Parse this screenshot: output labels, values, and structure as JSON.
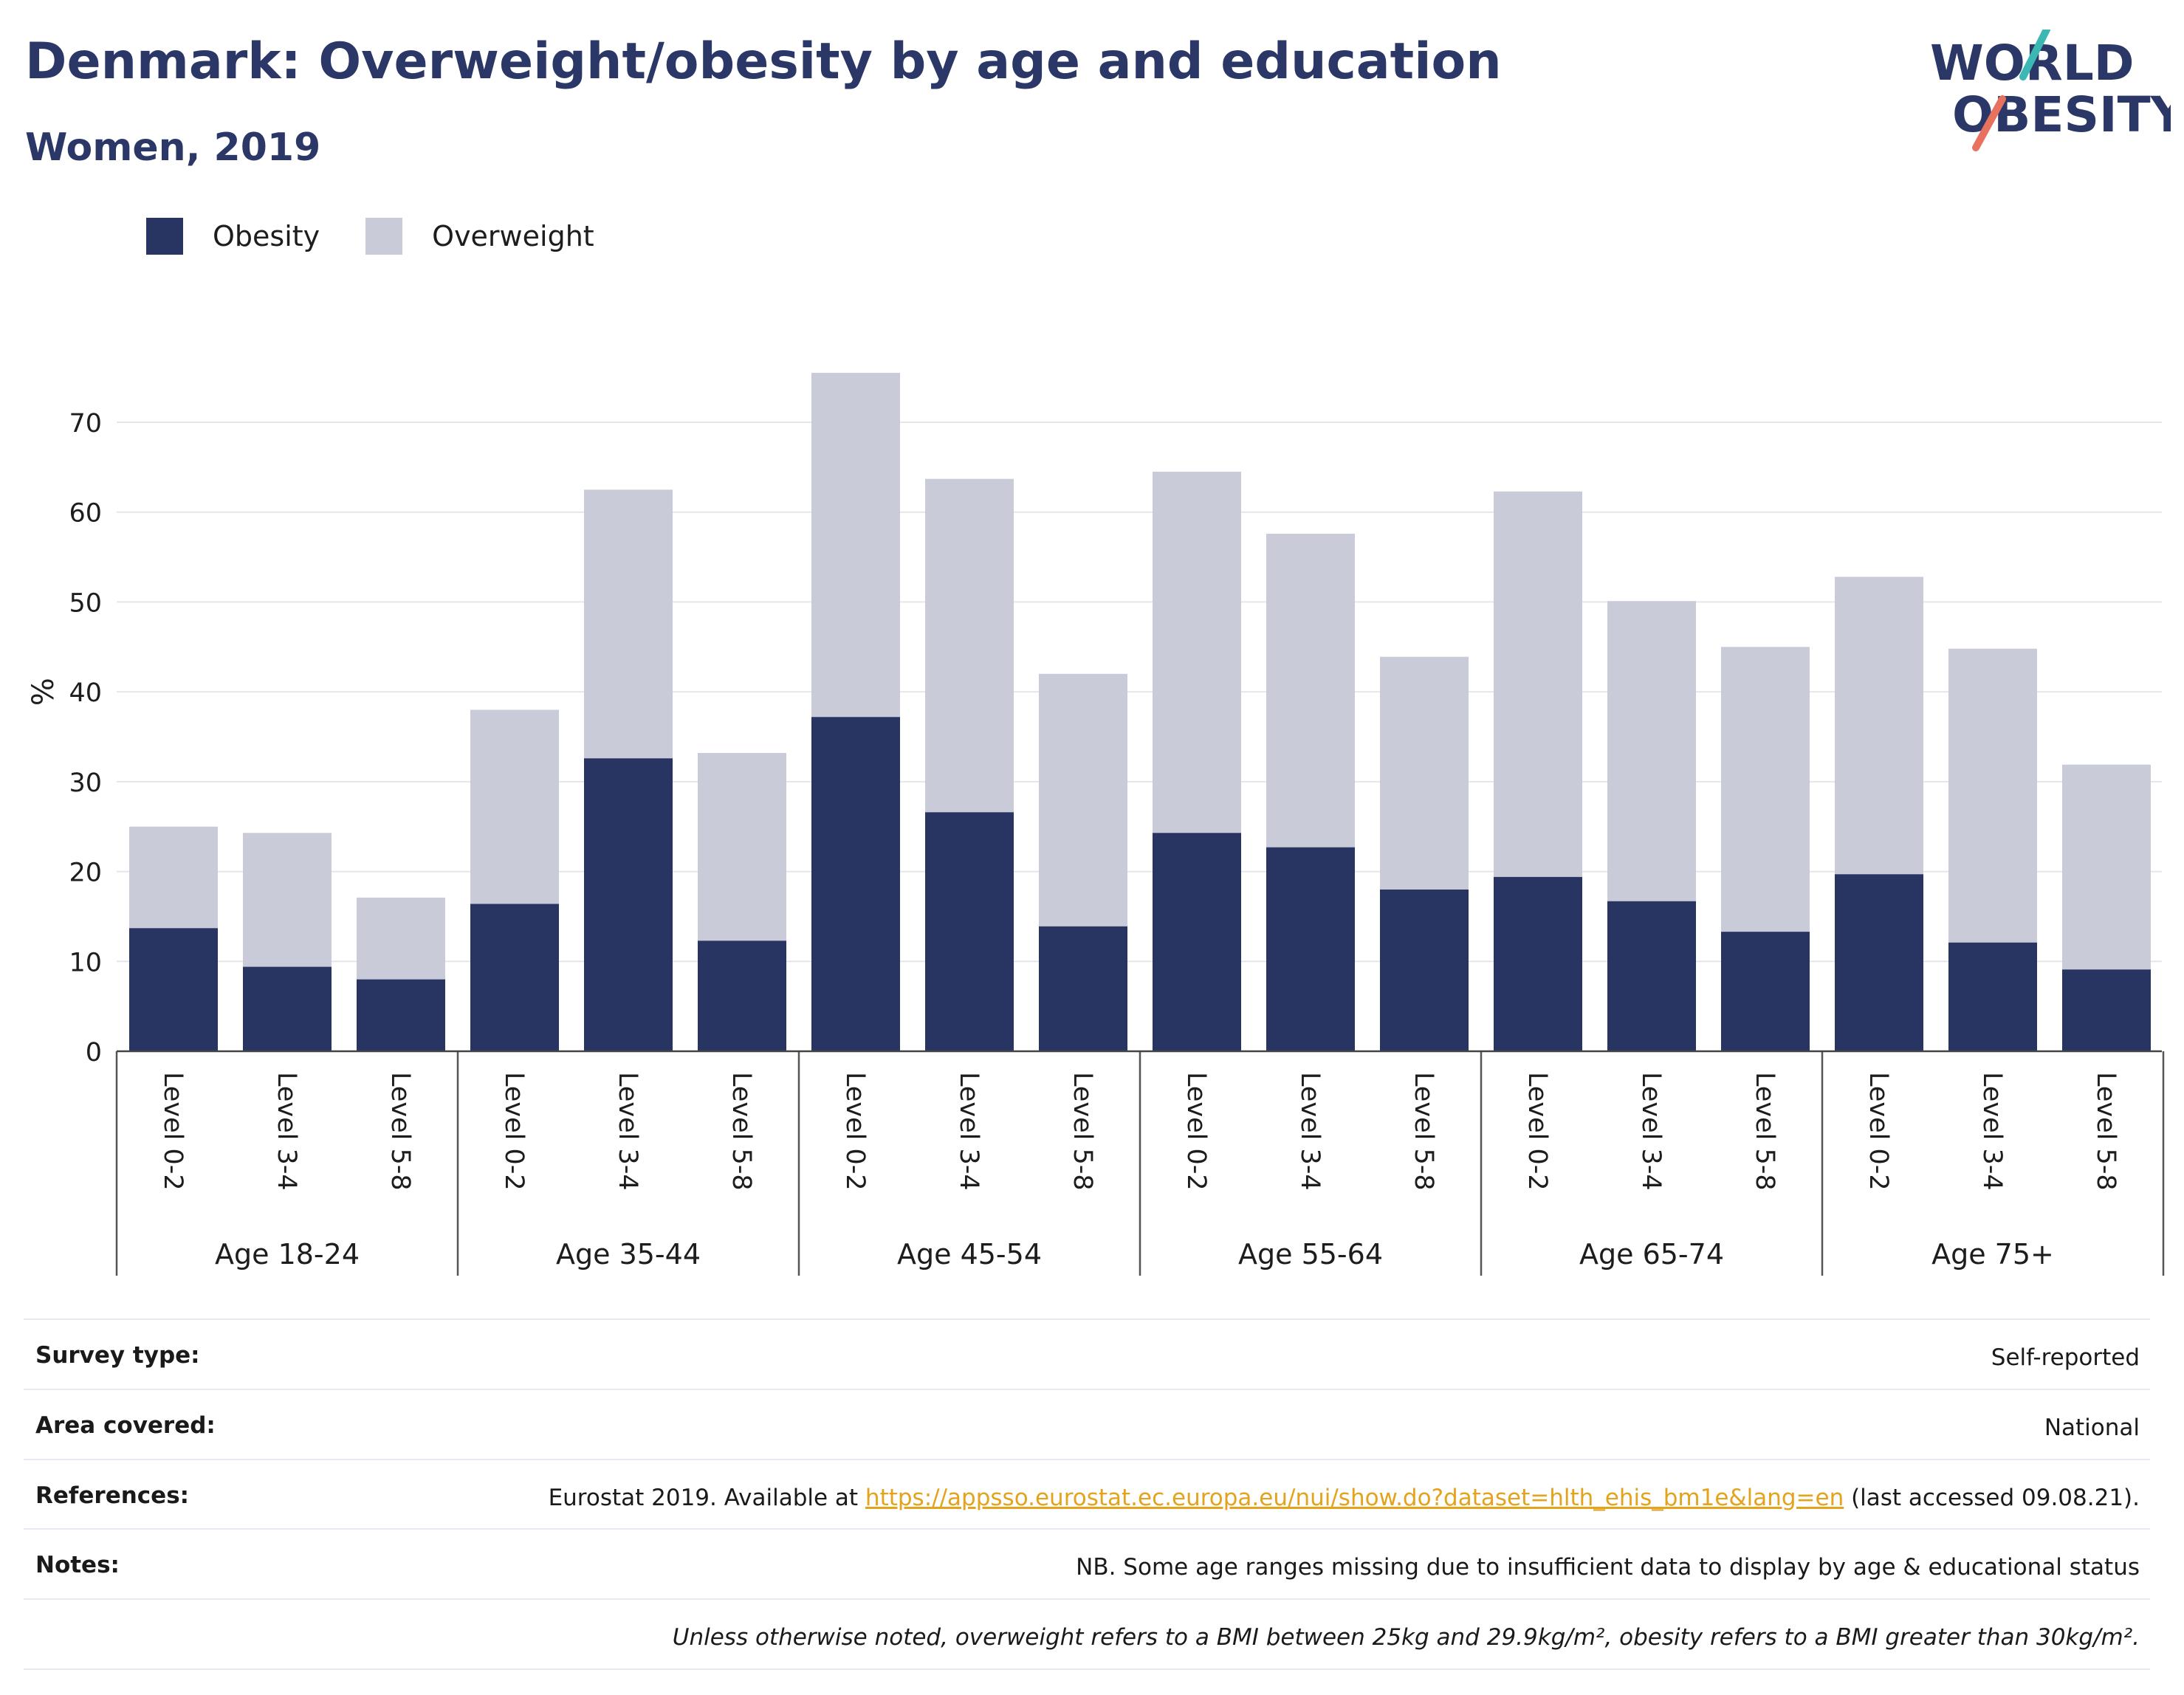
{
  "title": "Denmark: Overweight/obesity by age and education",
  "subtitle": "Women, 2019",
  "logo": {
    "line1": "WORLD",
    "line2": "OBESITY",
    "colors": {
      "navy": "#2b3766",
      "teal": "#3bb8b4",
      "coral": "#e8725e"
    }
  },
  "legend": [
    {
      "label": "Obesity",
      "color": "#283462"
    },
    {
      "label": "Overweight",
      "color": "#cacbd8"
    }
  ],
  "chart_data": {
    "type": "bar",
    "stacked": true,
    "ylabel": "%",
    "ylim": [
      0,
      80
    ],
    "yticks": [
      0,
      10,
      20,
      30,
      40,
      50,
      60,
      70
    ],
    "grid": true,
    "legend_position": "top-left",
    "groups": [
      {
        "label": "Age 18-24",
        "levels": [
          "Level 0-2",
          "Level 3-4",
          "Level 5-8"
        ]
      },
      {
        "label": "Age 35-44",
        "levels": [
          "Level 0-2",
          "Level 3-4",
          "Level 5-8"
        ]
      },
      {
        "label": "Age 45-54",
        "levels": [
          "Level 0-2",
          "Level 3-4",
          "Level 5-8"
        ]
      },
      {
        "label": "Age 55-64",
        "levels": [
          "Level 0-2",
          "Level 3-4",
          "Level 5-8"
        ]
      },
      {
        "label": "Age 65-74",
        "levels": [
          "Level 0-2",
          "Level 3-4",
          "Level 5-8"
        ]
      },
      {
        "label": "Age 75+",
        "levels": [
          "Level 0-2",
          "Level 3-4",
          "Level 5-8"
        ]
      }
    ],
    "series": [
      {
        "name": "Obesity",
        "color": "#283462",
        "values": [
          13.7,
          9.4,
          8.0,
          16.4,
          32.6,
          12.3,
          37.2,
          26.6,
          13.9,
          24.3,
          22.7,
          18.0,
          19.4,
          16.7,
          13.3,
          19.7,
          12.1,
          9.1
        ]
      },
      {
        "name": "Overweight",
        "color": "#cacbd8",
        "values": [
          11.3,
          14.9,
          9.1,
          21.6,
          29.9,
          20.9,
          38.3,
          37.1,
          28.1,
          40.2,
          34.9,
          25.9,
          42.9,
          33.4,
          31.7,
          33.1,
          32.7,
          22.8
        ]
      }
    ]
  },
  "info": {
    "survey_label": "Survey type:",
    "survey_value": "Self-reported",
    "area_label": "Area covered:",
    "area_value": "National",
    "references_label": "References:",
    "references_prefix": "Eurostat 2019. Available at ",
    "references_link": "https://appsso.eurostat.ec.europa.eu/nui/show.do?dataset=hlth_ehis_bm1e&lang=en",
    "references_suffix": " (last accessed 09.08.21).",
    "notes_label": "Notes:",
    "notes_value": "NB. Some age ranges missing due to insufficient data to display by age & educational status",
    "footnote": "Unless otherwise noted, overweight refers to a BMI between 25kg and 29.9kg/m², obesity refers to a BMI greater than 30kg/m²."
  }
}
